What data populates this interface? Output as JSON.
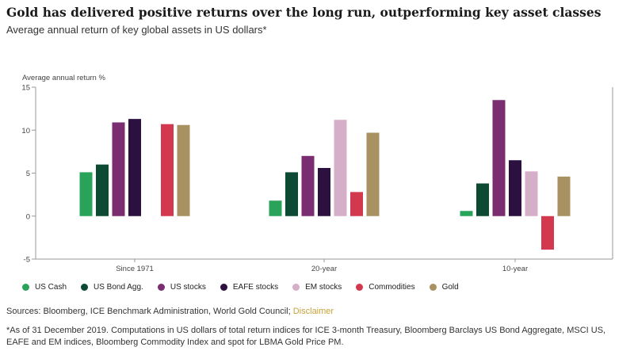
{
  "header": {
    "title": "Gold has delivered positive returns over the long run, outperforming key asset classes",
    "subtitle": "Average annual return of key global assets in US dollars*"
  },
  "footer": {
    "sources_text": "Sources: Bloomberg, ICE Benchmark Administration, World Gold Council; ",
    "sources_link": "Disclaimer",
    "footnote_line1": "*As of 31 December 2019. Computations in US dollars of total return indices for ICE 3-month Treasury, Bloomberg Barclays US Bond Aggregate, MSCI US,",
    "footnote_line2": "EAFE and EM indices, Bloomberg Commodity Index and spot for LBMA Gold Price PM."
  },
  "chart_data": {
    "type": "bar",
    "ylabel": "Average annual return %",
    "ylim": [
      -5,
      15
    ],
    "yticks": [
      -5,
      0,
      5,
      10,
      15
    ],
    "grid": false,
    "legend_position": "bottom",
    "categories": [
      "Since 1971",
      "20-year",
      "10-year"
    ],
    "series": [
      {
        "name": "US Cash",
        "color": "#2aa35a",
        "values": [
          5.1,
          1.8,
          0.6
        ]
      },
      {
        "name": "US Bond Agg.",
        "color": "#0d4a33",
        "values": [
          6.0,
          5.1,
          3.8
        ]
      },
      {
        "name": "US stocks",
        "color": "#7b2d72",
        "values": [
          10.9,
          7.0,
          13.5
        ]
      },
      {
        "name": "EAFE stocks",
        "color": "#2b1040",
        "values": [
          11.3,
          5.6,
          6.5
        ]
      },
      {
        "name": "EM stocks",
        "color": "#d5aec8",
        "values": [
          null,
          11.2,
          5.2
        ]
      },
      {
        "name": "Commodities",
        "color": "#d2384e",
        "values": [
          10.7,
          2.8,
          -3.9
        ]
      },
      {
        "name": "Gold",
        "color": "#a89262",
        "values": [
          10.6,
          9.7,
          4.6
        ]
      }
    ]
  }
}
